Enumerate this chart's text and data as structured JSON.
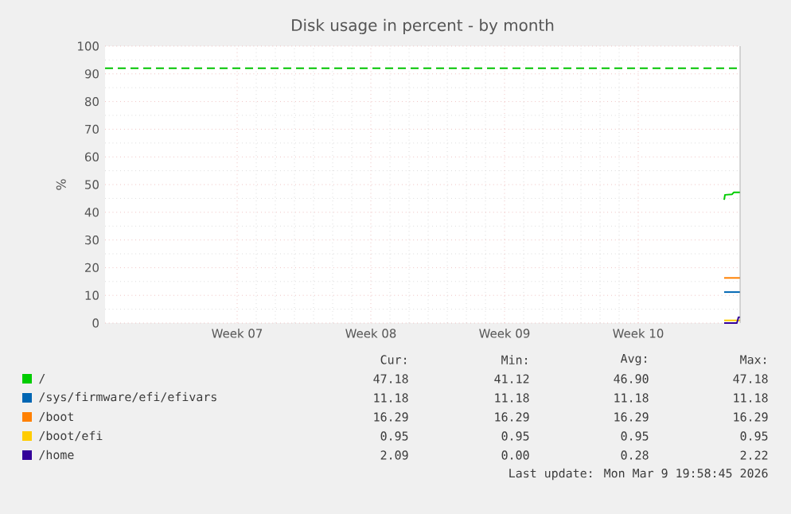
{
  "chart_data": {
    "type": "line",
    "title": "Disk usage in percent - by month",
    "ylabel": "%",
    "xlim": [
      "2026-02-04T14:00",
      "2026-03-09T20:00"
    ],
    "xticks": [
      {
        "value": "2026-02-11T12:00",
        "label": "Week 07"
      },
      {
        "value": "2026-02-18T12:00",
        "label": "Week 08"
      },
      {
        "value": "2026-02-25T12:00",
        "label": "Week 09"
      },
      {
        "value": "2026-03-04T12:00",
        "label": "Week 10"
      }
    ],
    "ylim": [
      0,
      100
    ],
    "yticks": [
      0,
      10,
      20,
      30,
      40,
      50,
      60,
      70,
      80,
      90,
      100
    ],
    "grid": true,
    "legend": "bottom",
    "line_style": "solid",
    "marker": "none",
    "series": [
      {
        "name": "/",
        "color": "#00cc00",
        "x": [
          "2026-03-09T00:00",
          "2026-03-09T01:00",
          "2026-03-09T10:00",
          "2026-03-09T12:00",
          "2026-03-09T20:00"
        ],
        "values": [
          44.5,
          46.3,
          46.5,
          47.18,
          47.18
        ]
      },
      {
        "name": "/sys/firmware/efi/efivars",
        "color": "#0066b3",
        "x": [
          "2026-03-09T00:00",
          "2026-03-09T20:00"
        ],
        "values": [
          11.18,
          11.18
        ]
      },
      {
        "name": "/boot",
        "color": "#ff8000",
        "x": [
          "2026-03-09T00:00",
          "2026-03-09T20:00"
        ],
        "values": [
          16.29,
          16.29
        ]
      },
      {
        "name": "/boot/efi",
        "color": "#ffcc00",
        "x": [
          "2026-03-09T00:00",
          "2026-03-09T20:00"
        ],
        "values": [
          0.95,
          0.95
        ]
      },
      {
        "name": "/home",
        "color": "#330099",
        "x": [
          "2026-03-09T00:00",
          "2026-03-09T16:00",
          "2026-03-09T18:00",
          "2026-03-09T20:00"
        ],
        "values": [
          0,
          0,
          2.09,
          2.09
        ]
      }
    ],
    "ref_lines": [
      {
        "axis": "y",
        "value": 92,
        "color": "#00c400",
        "line_style": "dashed"
      }
    ],
    "annotations": [
      "Cur:",
      "Min:",
      "Avg:",
      "Max:",
      "47.18",
      "41.12",
      "46.90",
      "47.18",
      "11.18",
      "11.18",
      "11.18",
      "11.18",
      "16.29",
      "16.29",
      "16.29",
      "16.29",
      "0.95",
      "0.95",
      "0.95",
      "0.95",
      "2.09",
      "0.00",
      "0.28",
      "2.22",
      "Last update: Mon Mar  9 19:58:45 2026"
    ]
  }
}
